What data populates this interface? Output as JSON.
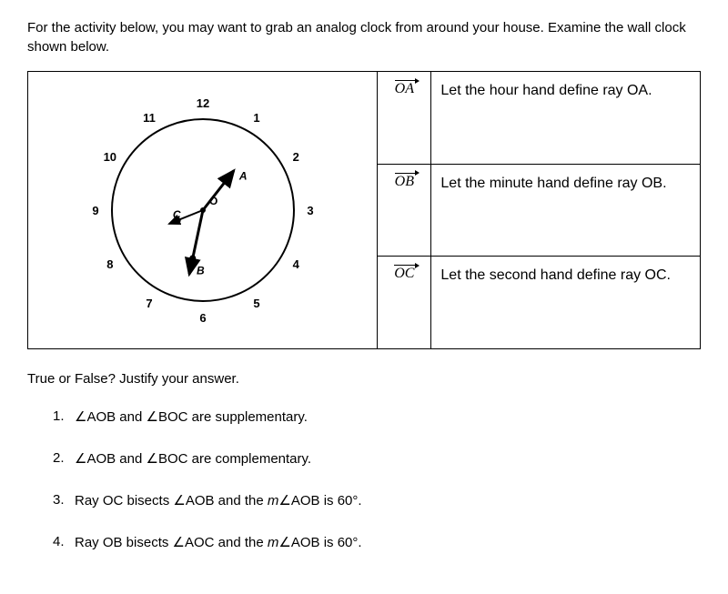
{
  "instructions": "For the activity below, you may want to grab an analog clock from around your house.  Examine the wall clock shown below.",
  "clock": {
    "numbers": [
      "12",
      "1",
      "2",
      "3",
      "4",
      "5",
      "6",
      "7",
      "8",
      "9",
      "10",
      "11"
    ],
    "center_label": "O",
    "hand_A": {
      "label": "A",
      "angle_deg": 38,
      "length": 55
    },
    "hand_B": {
      "label": "B",
      "angle_deg": 192,
      "length": 72
    },
    "hand_C": {
      "label": "C",
      "angle_deg": 248,
      "length": 40
    },
    "circle_stroke": "#000000",
    "circle_stroke_width": 2,
    "number_fontsize": 13,
    "label_fontsize": 12
  },
  "ray_table": [
    {
      "symbol": "OA",
      "definition": "Let the hour hand define ray OA."
    },
    {
      "symbol": "OB",
      "definition": "Let the minute hand define ray OB."
    },
    {
      "symbol": "OC",
      "definition": "Let the second hand define ray OC."
    }
  ],
  "tf_prompt": "True or False?  Justify your answer.",
  "questions": [
    {
      "num": "1.",
      "text_html": "<span class=\"angle\">∠</span>AOB and <span class=\"angle\">∠</span>BOC are supplementary."
    },
    {
      "num": "2.",
      "text_html": "<span class=\"angle\">∠</span>AOB and <span class=\"angle\">∠</span>BOC are complementary."
    },
    {
      "num": "3.",
      "text_html": "Ray OC bisects <span class=\"angle\">∠</span>AOB and the <span class=\"mangle\">m</span><span class=\"angle\">∠</span>AOB is 60°."
    },
    {
      "num": "4.",
      "text_html": "Ray OB bisects <span class=\"angle\">∠</span>AOC and the <span class=\"mangle\">m</span><span class=\"angle\">∠</span>AOB is 60°."
    }
  ],
  "colors": {
    "text": "#000000",
    "background": "#ffffff",
    "border": "#000000"
  }
}
